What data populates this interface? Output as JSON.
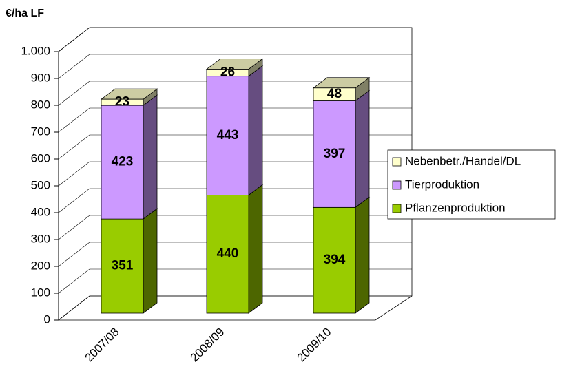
{
  "chart_data": {
    "type": "bar3d_stacked",
    "title": "€/ha LF",
    "categories": [
      "2007/08",
      "2008/09",
      "2009/10"
    ],
    "series": [
      {
        "name": "Pflanzenproduktion",
        "color": "#99cc00",
        "values": [
          351,
          440,
          394
        ]
      },
      {
        "name": "Tierproduktion",
        "color": "#cc99ff",
        "values": [
          423,
          443,
          397
        ]
      },
      {
        "name": "Nebenbetr./Handel/DL",
        "color": "#ffffcc",
        "values": [
          23,
          26,
          48
        ]
      }
    ],
    "ylim": [
      0,
      1000
    ],
    "yticks": [
      0,
      100,
      200,
      300,
      400,
      500,
      600,
      700,
      800,
      900,
      {
        "value": 1000,
        "label": "1.000"
      }
    ],
    "grid": true,
    "legend": "right"
  }
}
